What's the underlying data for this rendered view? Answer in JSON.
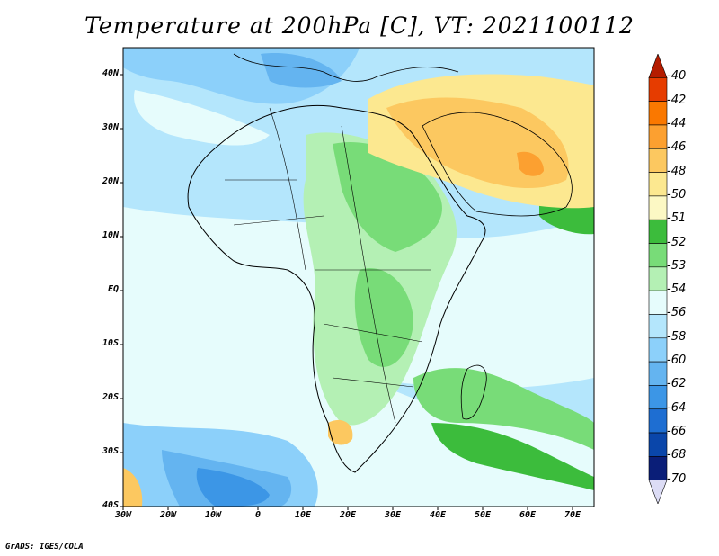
{
  "title": "Temperature at 200hPa [C], VT: 2021100112",
  "credit": "GrADS: IGES/COLA",
  "lat_labels": [
    "40N",
    "30N",
    "20N",
    "10N",
    "EQ",
    "10S",
    "20S",
    "30S",
    "40S"
  ],
  "lon_labels": [
    "30W",
    "20W",
    "10W",
    "0",
    "10E",
    "20E",
    "30E",
    "40E",
    "50E",
    "60E",
    "70E"
  ],
  "colorbar": {
    "labels": [
      "-40",
      "-42",
      "-44",
      "-46",
      "-48",
      "-50",
      "-51",
      "-52",
      "-53",
      "-54",
      "-56",
      "-58",
      "-60",
      "-62",
      "-64",
      "-66",
      "-68",
      "-70"
    ],
    "colors": [
      "#b41c00",
      "#e63c00",
      "#fa7800",
      "#fca030",
      "#fcc860",
      "#fce890",
      "#fcf8c4",
      "#3cbc3c",
      "#78dc78",
      "#b4f0b4",
      "#e6fcfc",
      "#b4e6fc",
      "#8cd0fa",
      "#64b4f0",
      "#3c96e6",
      "#1e6ed2",
      "#0a46aa",
      "#0a1e78",
      "#dcdcf5"
    ]
  }
}
